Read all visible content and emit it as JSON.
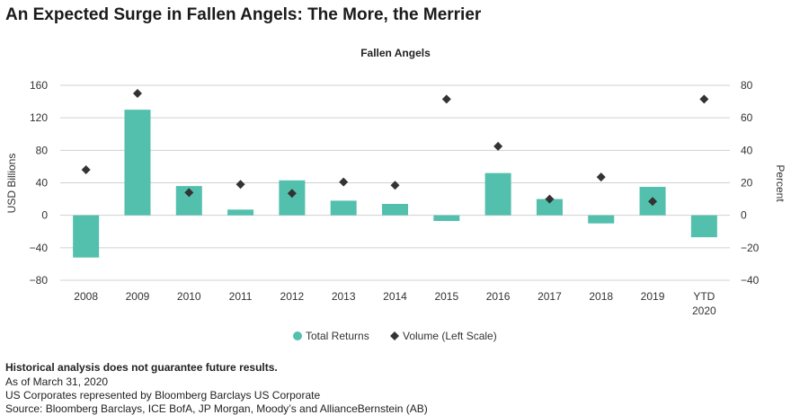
{
  "headline": "An Expected Surge in Fallen Angels: The More, the Merrier",
  "chart_data": {
    "type": "bar",
    "title": "Fallen Angels",
    "ylabel_left": "USD Billions",
    "ylabel_right": "Percent",
    "ylim_left": [
      -80,
      160
    ],
    "ylim_right": [
      -40,
      80
    ],
    "yticks_left": [
      "160",
      "120",
      "80",
      "40",
      "0",
      "−40",
      "−80"
    ],
    "yticks_right": [
      "80",
      "60",
      "40",
      "20",
      "0",
      "−20",
      "−40"
    ],
    "categories": [
      "2008",
      "2009",
      "2010",
      "2011",
      "2012",
      "2013",
      "2014",
      "2015",
      "2016",
      "2017",
      "2018",
      "2019",
      "YTD 2020"
    ],
    "category_lines": [
      [
        "2008"
      ],
      [
        "2009"
      ],
      [
        "2010"
      ],
      [
        "2011"
      ],
      [
        "2012"
      ],
      [
        "2013"
      ],
      [
        "2014"
      ],
      [
        "2015"
      ],
      [
        "2016"
      ],
      [
        "2017"
      ],
      [
        "2018"
      ],
      [
        "2019"
      ],
      [
        "YTD",
        "2020"
      ]
    ],
    "series": [
      {
        "name": "Total Returns",
        "kind": "bar",
        "axis": "right",
        "color": "#52c0ac",
        "values": [
          -26,
          65,
          18,
          3.5,
          21.5,
          9,
          7,
          -3.5,
          26,
          10,
          -5,
          17.5,
          -13.5
        ]
      },
      {
        "name": "Volume (Left Scale)",
        "kind": "marker",
        "axis": "left",
        "color": "#333333",
        "values": [
          56,
          150,
          28,
          38,
          27,
          41,
          37,
          143,
          85,
          20,
          47,
          17,
          143
        ]
      }
    ],
    "legend": [
      "Total Returns",
      "Volume (Left Scale)"
    ],
    "legend_position": "bottom"
  },
  "footnotes": {
    "disclaimer": "Historical analysis does not guarantee future results.",
    "as_of": "As of March 31, 2020",
    "represented": "US Corporates represented by Bloomberg Barclays US Corporate",
    "source": "Source: Bloomberg Barclays, ICE BofA, JP Morgan, Moody’s and AllianceBernstein (AB)"
  }
}
